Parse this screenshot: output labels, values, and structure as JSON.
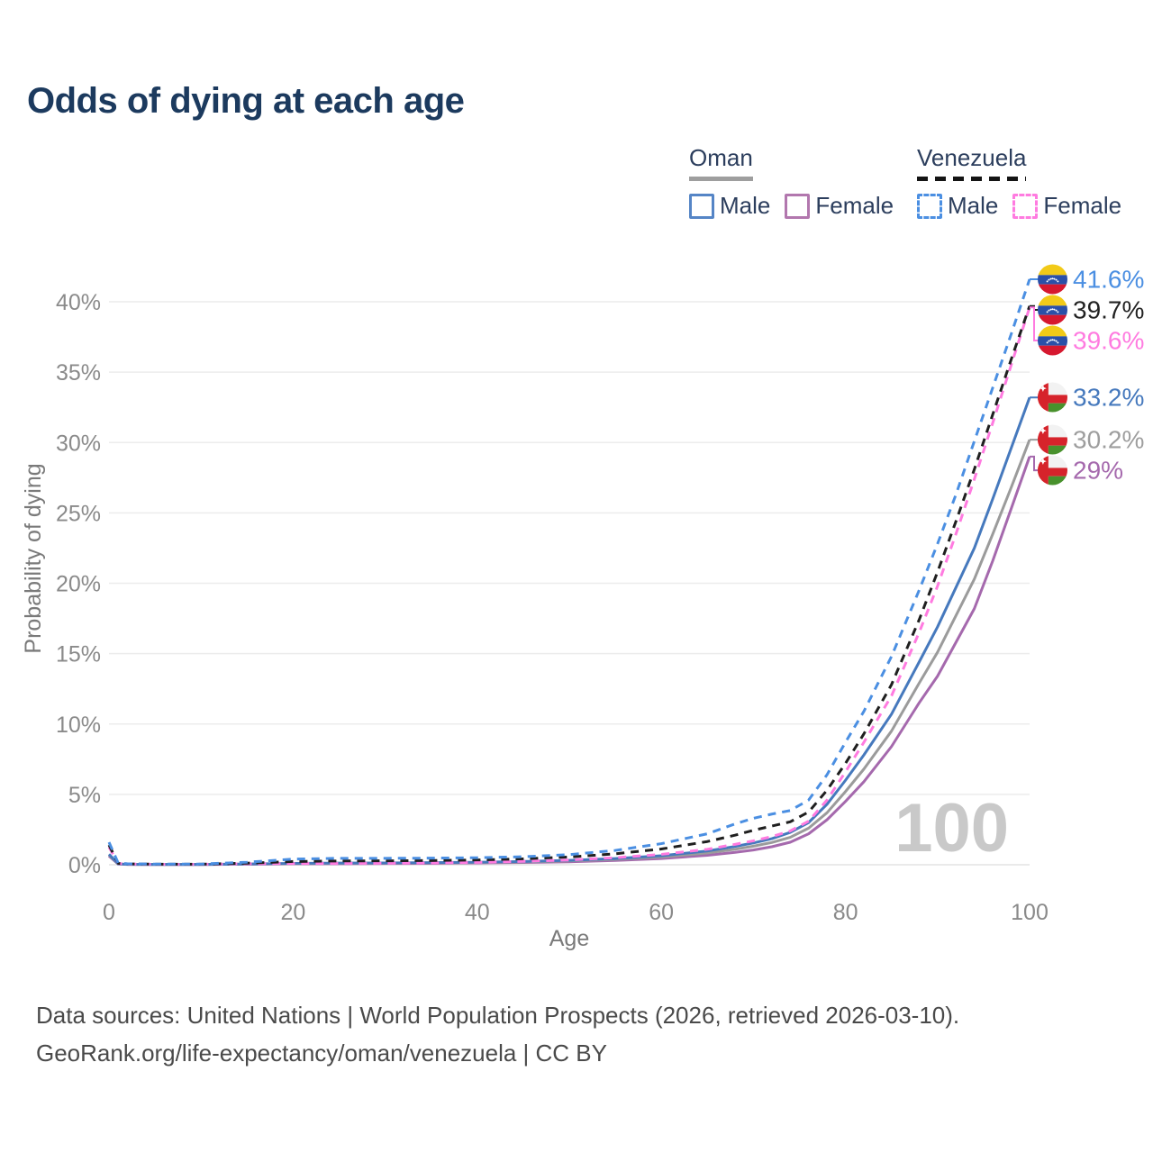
{
  "title": "Odds of dying at each age",
  "legend": {
    "groups": [
      {
        "country": "Oman",
        "line_style": "solid",
        "items": [
          {
            "label": "Male",
            "color": "#4679bd"
          },
          {
            "label": "Female",
            "color": "#a868ae"
          }
        ]
      },
      {
        "country": "Venezuela",
        "line_style": "dashed",
        "items": [
          {
            "label": "Male",
            "color": "#4b8fe2"
          },
          {
            "label": "Female",
            "color": "#ff7be0"
          }
        ]
      }
    ]
  },
  "watermark": "100",
  "footer": {
    "line1": "Data sources: United Nations | World Population Prospects (2026, retrieved 2026-03-10).",
    "line2": "GeoRank.org/life-expectancy/oman/venezuela | CC BY"
  },
  "chart_data": {
    "type": "line",
    "title": "Odds of dying at each age",
    "xlabel": "Age",
    "ylabel": "Probability of dying",
    "xlim": [
      0,
      100
    ],
    "ylim": [
      0,
      43
    ],
    "grid": true,
    "x_ticks": [
      0,
      20,
      40,
      60,
      80,
      100
    ],
    "y_ticks": [
      "0%",
      "5%",
      "10%",
      "15%",
      "20%",
      "25%",
      "30%",
      "35%",
      "40%"
    ],
    "x": [
      0,
      1,
      2,
      5,
      10,
      15,
      20,
      25,
      30,
      35,
      40,
      45,
      50,
      55,
      60,
      65,
      68,
      70,
      72,
      74,
      76,
      78,
      80,
      82,
      85,
      88,
      90,
      92,
      94,
      96,
      98,
      100
    ],
    "series": [
      {
        "name": "Venezuela Male",
        "country": "Venezuela",
        "sex": "Male",
        "color": "#4b8fe2",
        "label_color": "#4b8fe2",
        "dash": true,
        "flag": "venezuela",
        "end_label": "41.6%",
        "values": [
          1.6,
          0.12,
          0.07,
          0.05,
          0.05,
          0.18,
          0.4,
          0.46,
          0.46,
          0.47,
          0.5,
          0.57,
          0.72,
          1.02,
          1.5,
          2.2,
          2.9,
          3.3,
          3.6,
          3.85,
          4.6,
          6.4,
          8.7,
          10.9,
          14.8,
          19.5,
          22.8,
          26.3,
          30.1,
          33.9,
          37.7,
          41.6
        ]
      },
      {
        "name": "Venezuela Both sexes",
        "country": "Venezuela",
        "sex": "Both",
        "color": "#1f1f1f",
        "label_color": "#222222",
        "dash": true,
        "flag": "venezuela",
        "end_label": "39.7%",
        "values": [
          1.4,
          0.1,
          0.06,
          0.04,
          0.04,
          0.11,
          0.23,
          0.27,
          0.28,
          0.3,
          0.34,
          0.42,
          0.55,
          0.78,
          1.12,
          1.65,
          2.1,
          2.45,
          2.75,
          3.05,
          3.75,
          5.3,
          7.2,
          9.3,
          12.8,
          17.4,
          20.8,
          24.4,
          28.1,
          32.0,
          35.9,
          39.7
        ]
      },
      {
        "name": "Venezuela Female",
        "country": "Venezuela",
        "sex": "Female",
        "color": "#ff7be0",
        "label_color": "#ff7be0",
        "dash": true,
        "flag": "venezuela",
        "end_label": "39.6%",
        "values": [
          1.25,
          0.09,
          0.05,
          0.035,
          0.035,
          0.07,
          0.09,
          0.1,
          0.11,
          0.13,
          0.17,
          0.24,
          0.34,
          0.5,
          0.74,
          1.1,
          1.45,
          1.7,
          2.0,
          2.4,
          3.1,
          4.6,
          6.6,
          8.7,
          12.0,
          16.5,
          19.8,
          23.5,
          27.4,
          31.4,
          35.5,
          39.6
        ]
      },
      {
        "name": "Oman Male",
        "country": "Oman",
        "sex": "Male",
        "color": "#4679bd",
        "label_color": "#4679bd",
        "dash": false,
        "flag": "oman",
        "end_label": "33.2%",
        "values": [
          0.75,
          0.06,
          0.03,
          0.025,
          0.025,
          0.055,
          0.1,
          0.12,
          0.13,
          0.15,
          0.18,
          0.23,
          0.31,
          0.44,
          0.64,
          0.98,
          1.3,
          1.55,
          1.85,
          2.3,
          3.0,
          4.3,
          6.0,
          7.8,
          10.7,
          14.4,
          16.9,
          19.7,
          22.5,
          26.0,
          29.6,
          33.2
        ]
      },
      {
        "name": "Oman Both sexes",
        "country": "Oman",
        "sex": "Both",
        "color": "#9b9b9b",
        "label_color": "#9e9e9e",
        "dash": false,
        "flag": "oman",
        "end_label": "30.2%",
        "values": [
          0.7,
          0.055,
          0.028,
          0.022,
          0.022,
          0.045,
          0.08,
          0.1,
          0.11,
          0.13,
          0.16,
          0.2,
          0.27,
          0.38,
          0.55,
          0.84,
          1.1,
          1.32,
          1.58,
          1.95,
          2.6,
          3.7,
          5.2,
          6.8,
          9.5,
          12.9,
          15.1,
          17.7,
          20.3,
          23.5,
          26.8,
          30.2
        ]
      },
      {
        "name": "Oman Female",
        "country": "Oman",
        "sex": "Female",
        "color": "#a569ad",
        "label_color": "#a569ad",
        "dash": false,
        "flag": "oman",
        "end_label": "29%",
        "values": [
          0.62,
          0.05,
          0.025,
          0.02,
          0.02,
          0.035,
          0.06,
          0.07,
          0.09,
          0.1,
          0.13,
          0.16,
          0.21,
          0.3,
          0.44,
          0.67,
          0.88,
          1.05,
          1.28,
          1.6,
          2.2,
          3.2,
          4.5,
          5.9,
          8.4,
          11.5,
          13.4,
          15.8,
          18.2,
          21.6,
          25.3,
          29.0
        ]
      }
    ],
    "legend_position": "top-right",
    "watermark": "100"
  }
}
